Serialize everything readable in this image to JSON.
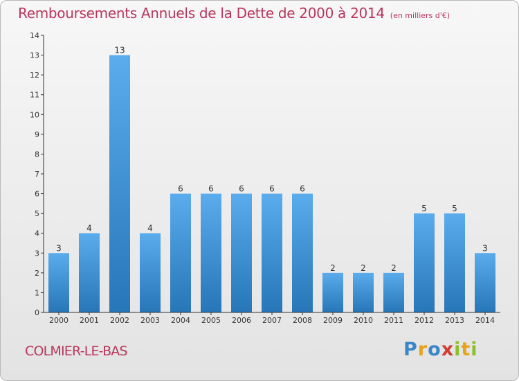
{
  "title": "Remboursements Annuels de la Dette de 2000 à 2014",
  "subtitle": "(en milliers d'€)",
  "commune": "COLMIER-LE-BAS",
  "logo": {
    "text": "Proxiti",
    "letters": [
      {
        "char": "P",
        "color": "#3a86c8"
      },
      {
        "char": "r",
        "color": "#e8a21b"
      },
      {
        "char": "o",
        "color": "#3a86c8"
      },
      {
        "char": "x",
        "color": "#d23b2f"
      },
      {
        "char": "i",
        "color": "#8cbf2a"
      },
      {
        "char": "t",
        "color": "#e8a21b"
      },
      {
        "char": "i",
        "color": "#8cbf2a"
      }
    ]
  },
  "colors": {
    "title": "#b9355d",
    "bar_light": "#5aacec",
    "bar_dark": "#2676b8",
    "axis": "#333333"
  },
  "chart_data": {
    "type": "bar",
    "categories": [
      "2000",
      "2001",
      "2002",
      "2003",
      "2004",
      "2005",
      "2006",
      "2007",
      "2008",
      "2009",
      "2010",
      "2011",
      "2012",
      "2013",
      "2014"
    ],
    "values": [
      3,
      4,
      13,
      4,
      6,
      6,
      6,
      6,
      6,
      2,
      2,
      2,
      5,
      5,
      3
    ],
    "data_labels": [
      "3",
      "4",
      "13",
      "4",
      "6",
      "6",
      "6",
      "6",
      "6",
      "2",
      "2",
      "2",
      "5",
      "5",
      "3"
    ],
    "y_ticks": [
      "0",
      "1",
      "2",
      "3",
      "4",
      "5",
      "6",
      "7",
      "8",
      "9",
      "10",
      "11",
      "12",
      "13",
      "14"
    ],
    "ylim": [
      0,
      14
    ],
    "grid": false,
    "legend": "none"
  }
}
